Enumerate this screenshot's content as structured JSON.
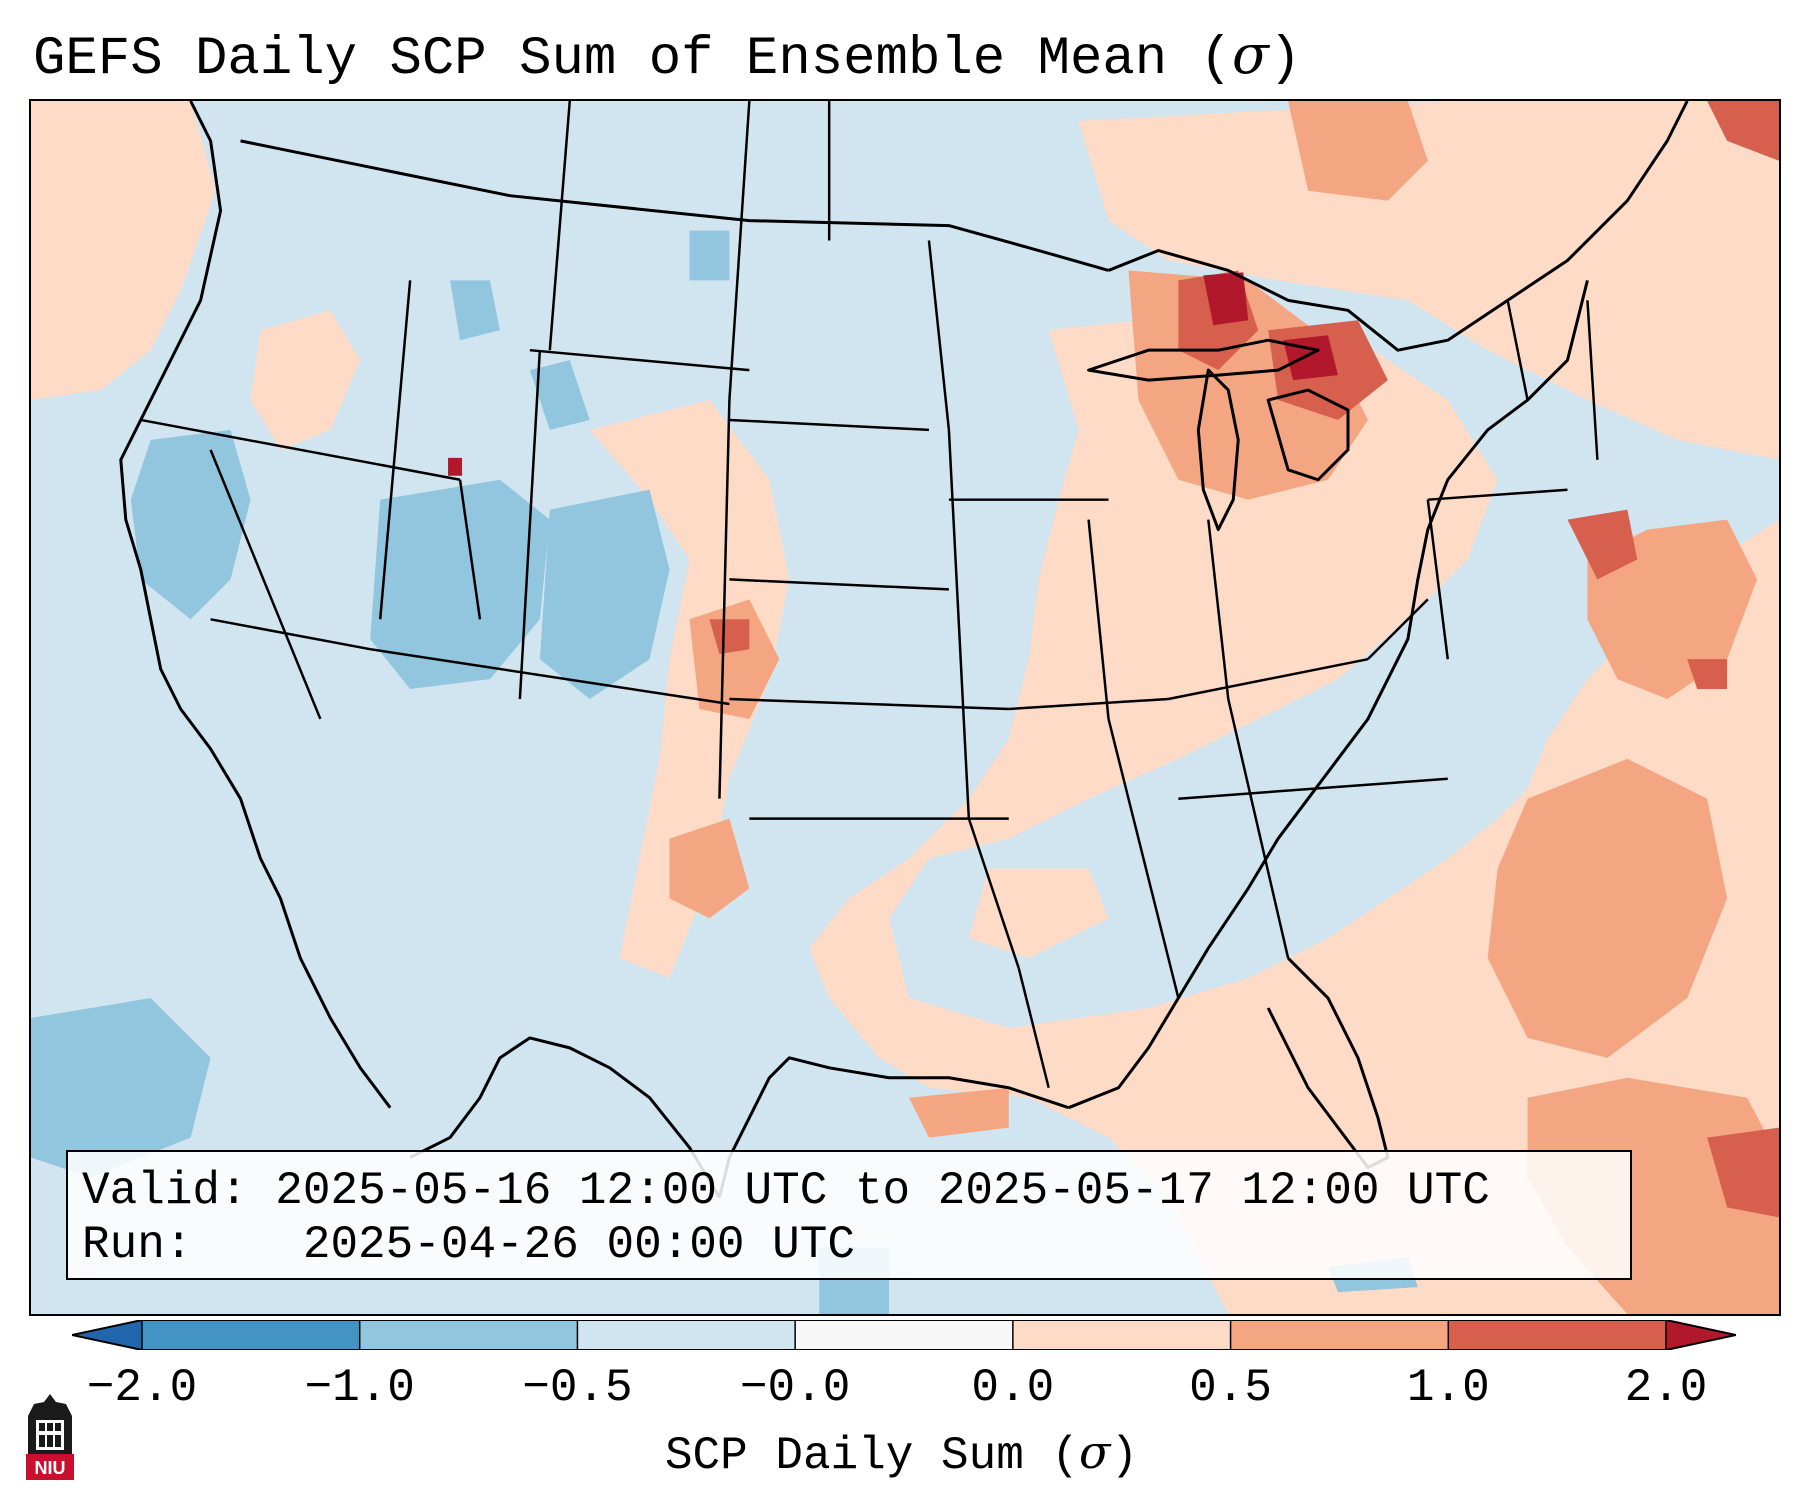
{
  "title": {
    "prefix": "GEFS Daily SCP Sum of Ensemble Mean (",
    "symbol": "σ",
    "suffix": ")"
  },
  "info": {
    "valid_label": "Valid:",
    "valid_value": "2025-05-16 12:00 UTC to 2025-05-17 12:00 UTC",
    "run_label": "Run:",
    "run_value": "2025-04-26 00:00 UTC"
  },
  "colorbar": {
    "label_prefix": "SCP Daily Sum (",
    "label_symbol": "σ",
    "label_suffix": ")",
    "ticks": [
      "−2.0",
      "−1.0",
      "−0.5",
      "−0.0",
      "0.0",
      "0.5",
      "1.0",
      "2.0"
    ],
    "bins": [
      {
        "from": -2.0,
        "to": -1.0,
        "color": "#4393c3"
      },
      {
        "from": -1.0,
        "to": -0.5,
        "color": "#92c5de"
      },
      {
        "from": -0.5,
        "to": -0.0,
        "color": "#d1e5f0"
      },
      {
        "from": -0.0,
        "to": 0.0,
        "color": "#f7f7f7"
      },
      {
        "from": 0.0,
        "to": 0.5,
        "color": "#fddbc7"
      },
      {
        "from": 0.5,
        "to": 1.0,
        "color": "#f4a582"
      },
      {
        "from": 1.0,
        "to": 2.0,
        "color": "#d6604d"
      }
    ],
    "under_color": "#2166ac",
    "over_color": "#b2182b"
  },
  "map": {
    "background_color": "#d1e5f0",
    "coastline_color": "#000000"
  },
  "logo": {
    "text": "NIU",
    "color": "#c8102e"
  }
}
